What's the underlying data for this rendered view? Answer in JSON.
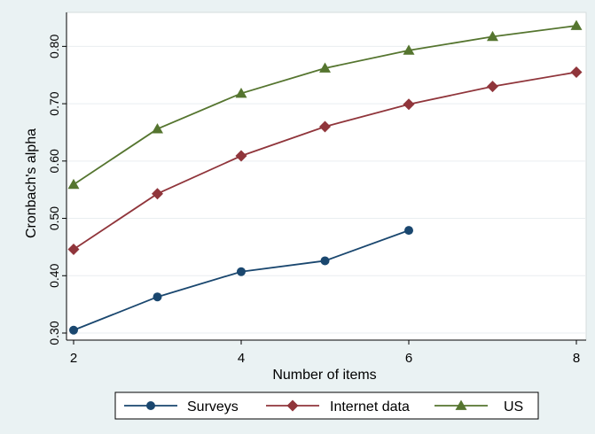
{
  "chart_data": {
    "type": "line",
    "xlabel": "Number of items",
    "ylabel": "Cronbach's alpha",
    "xlim": [
      2,
      8
    ],
    "ylim": [
      0.3,
      0.85
    ],
    "xticks": [
      2,
      4,
      6,
      8
    ],
    "xtick_labels": [
      "2",
      "4",
      "6",
      "8"
    ],
    "yticks": [
      0.3,
      0.4,
      0.5,
      0.6,
      0.7,
      0.8
    ],
    "ytick_labels": [
      "0.30",
      "0.40",
      "0.50",
      "0.60",
      "0.70",
      "0.80"
    ],
    "grid": "horizontal",
    "legend_position": "bottom",
    "series": [
      {
        "name": "Surveys",
        "color": "#1a476f",
        "marker": "circle",
        "x": [
          2,
          3,
          4,
          5,
          6
        ],
        "values": [
          0.305,
          0.363,
          0.407,
          0.426,
          0.479
        ]
      },
      {
        "name": "Internet data",
        "color": "#90353b",
        "marker": "diamond",
        "x": [
          2,
          3,
          4,
          5,
          6,
          7,
          8
        ],
        "values": [
          0.446,
          0.543,
          0.609,
          0.66,
          0.699,
          0.73,
          0.755
        ]
      },
      {
        "name": "US",
        "color": "#55752f",
        "marker": "triangle",
        "x": [
          2,
          3,
          4,
          5,
          6,
          7,
          8
        ],
        "values": [
          0.559,
          0.656,
          0.718,
          0.762,
          0.793,
          0.817,
          0.836
        ]
      }
    ]
  }
}
